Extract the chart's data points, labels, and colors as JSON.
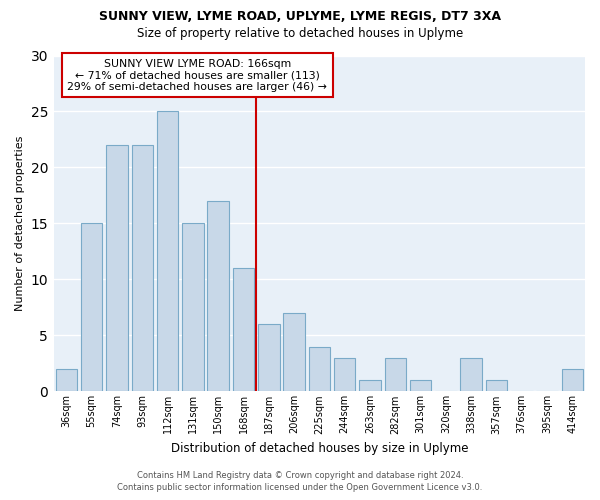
{
  "title1": "SUNNY VIEW, LYME ROAD, UPLYME, LYME REGIS, DT7 3XA",
  "title2": "Size of property relative to detached houses in Uplyme",
  "xlabel": "Distribution of detached houses by size in Uplyme",
  "ylabel": "Number of detached properties",
  "bar_labels": [
    "36sqm",
    "55sqm",
    "74sqm",
    "93sqm",
    "112sqm",
    "131sqm",
    "150sqm",
    "168sqm",
    "187sqm",
    "206sqm",
    "225sqm",
    "244sqm",
    "263sqm",
    "282sqm",
    "301sqm",
    "320sqm",
    "338sqm",
    "357sqm",
    "376sqm",
    "395sqm",
    "414sqm"
  ],
  "bar_values": [
    2,
    15,
    22,
    22,
    25,
    15,
    17,
    11,
    6,
    7,
    4,
    3,
    1,
    3,
    1,
    0,
    3,
    1,
    0,
    0,
    2
  ],
  "bar_color": "#c8d8e8",
  "bar_edge_color": "#7aaac8",
  "vline_x": 7.5,
  "vline_color": "#cc0000",
  "annotation_title": "SUNNY VIEW LYME ROAD: 166sqm",
  "annotation_line1": "← 71% of detached houses are smaller (113)",
  "annotation_line2": "29% of semi-detached houses are larger (46) →",
  "annotation_box_color": "#ffffff",
  "annotation_box_edge": "#cc0000",
  "ylim": [
    0,
    30
  ],
  "yticks": [
    0,
    5,
    10,
    15,
    20,
    25,
    30
  ],
  "footer1": "Contains HM Land Registry data © Crown copyright and database right 2024.",
  "footer2": "Contains public sector information licensed under the Open Government Licence v3.0."
}
